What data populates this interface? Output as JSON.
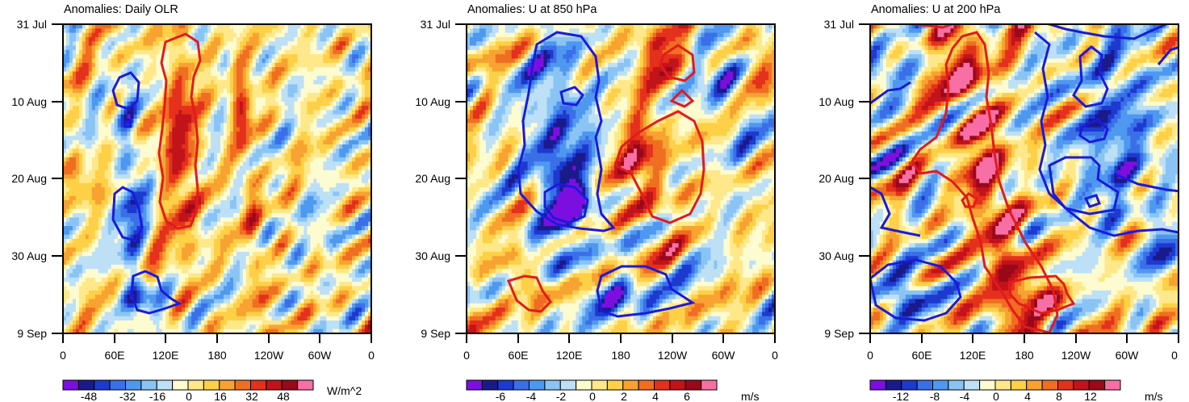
{
  "chart_data": [
    {
      "type": "heatmap",
      "title": "Anomalies: Daily OLR",
      "xlabel": "",
      "ylabel": "",
      "x_ticks": [
        "0",
        "60E",
        "120E",
        "180",
        "120W",
        "60W",
        "0"
      ],
      "x_range_deg_east": [
        0,
        360
      ],
      "y_ticks": [
        "31 Jul",
        "10 Aug",
        "20 Aug",
        "30 Aug",
        "9 Sep"
      ],
      "y_range": [
        "31 Jul",
        "9 Sep"
      ],
      "colorbar": {
        "tick_labels": [
          "-48",
          "-32",
          "-16",
          "0",
          "16",
          "32",
          "48"
        ],
        "range": [
          -64,
          64
        ],
        "step": 8,
        "units": "W/m^2"
      },
      "contours": [
        {
          "color": "red",
          "lon_range": [
            115,
            170
          ],
          "date_range": [
            "2 Aug",
            "27 Aug"
          ]
        },
        {
          "color": "blue",
          "lon_range": [
            60,
            95
          ],
          "date_range": [
            "5 Aug",
            "11 Aug"
          ]
        },
        {
          "color": "blue",
          "lon_range": [
            60,
            90
          ],
          "date_range": [
            "21 Aug",
            "27 Aug"
          ]
        },
        {
          "color": "blue",
          "lon_range": [
            80,
            140
          ],
          "date_range": [
            "1 Sep",
            "7 Sep"
          ]
        }
      ]
    },
    {
      "type": "heatmap",
      "title": "Anomalies: U at 850 hPa",
      "xlabel": "",
      "ylabel": "",
      "x_ticks": [
        "0",
        "60E",
        "120E",
        "180",
        "120W",
        "60W",
        "0"
      ],
      "x_range_deg_east": [
        0,
        360
      ],
      "y_ticks": [
        "31 Jul",
        "10 Aug",
        "20 Aug",
        "30 Aug",
        "9 Sep"
      ],
      "y_range": [
        "31 Jul",
        "9 Sep"
      ],
      "colorbar": {
        "tick_labels": [
          "-6",
          "-4",
          "-2",
          "0",
          "2",
          "4",
          "6"
        ],
        "range": [
          -8,
          8
        ],
        "step": 1,
        "units": "m/s"
      },
      "contours": [
        {
          "color": "blue",
          "lon_range": [
            60,
            175
          ],
          "date_range": [
            "1 Aug",
            "27 Aug"
          ]
        },
        {
          "color": "red",
          "lon_range": [
            175,
            290
          ],
          "date_range": [
            "3 Aug",
            "26 Aug"
          ]
        },
        {
          "color": "red",
          "lon_range": [
            50,
            100
          ],
          "date_range": [
            "2 Sep",
            "7 Sep"
          ]
        },
        {
          "color": "blue",
          "lon_range": [
            155,
            265
          ],
          "date_range": [
            "1 Sep",
            "7 Sep"
          ]
        }
      ]
    },
    {
      "type": "heatmap",
      "title": "Anomalies: U at 200 hPa",
      "xlabel": "",
      "ylabel": "",
      "x_ticks": [
        "0",
        "60E",
        "120E",
        "180",
        "120W",
        "60W",
        "0"
      ],
      "x_range_deg_east": [
        0,
        360
      ],
      "y_ticks": [
        "31 Jul",
        "10 Aug",
        "20 Aug",
        "30 Aug",
        "9 Sep"
      ],
      "y_range": [
        "31 Jul",
        "9 Sep"
      ],
      "colorbar": {
        "tick_labels": [
          "-12",
          "-8",
          "-4",
          "0",
          "4",
          "8",
          "12"
        ],
        "range": [
          -16,
          16
        ],
        "step": 2,
        "units": "m/s"
      },
      "contours": [
        {
          "color": "red",
          "lon_range": [
            50,
            165
          ],
          "date_range": [
            "31 Jul",
            "7 Sep"
          ]
        },
        {
          "color": "blue",
          "lon_range": [
            200,
            360
          ],
          "date_range": [
            "31 Jul",
            "29 Aug"
          ]
        },
        {
          "color": "blue",
          "lon_range": [
            0,
            110
          ],
          "date_range": [
            "31 Aug",
            "8 Sep"
          ]
        },
        {
          "color": "red",
          "lon_range": [
            170,
            245
          ],
          "date_range": [
            "1 Sep",
            "6 Sep"
          ]
        }
      ]
    }
  ]
}
